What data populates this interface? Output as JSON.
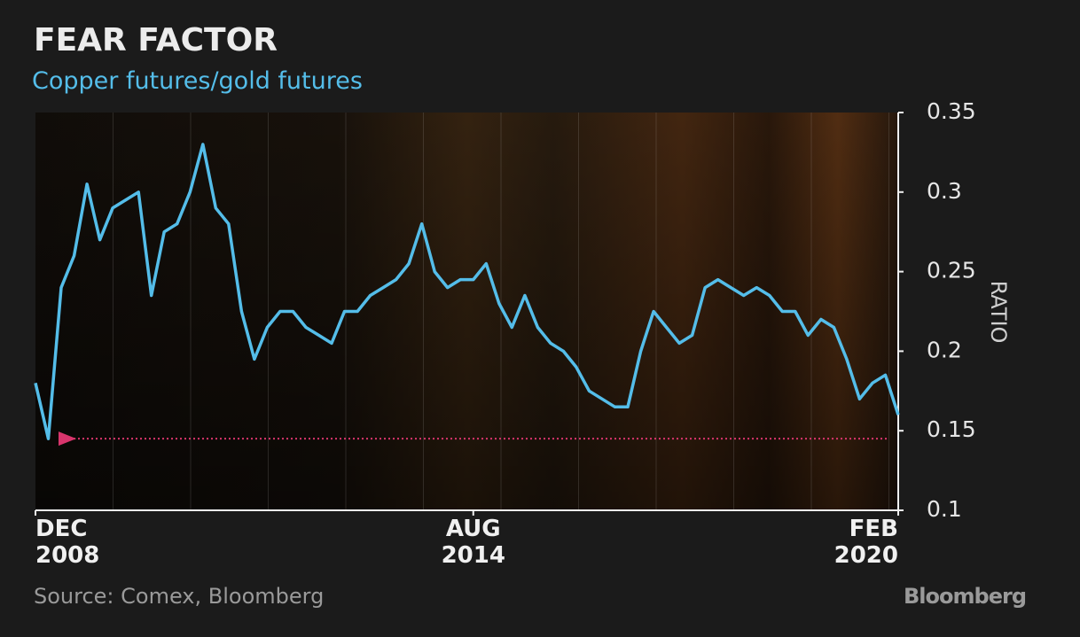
{
  "chart_data": {
    "type": "line",
    "title": "FEAR FACTOR",
    "subtitle": "Copper futures/gold futures",
    "y_label": "RATIO",
    "source": "Source: Comex, Bloomberg",
    "brand": "Bloomberg",
    "color": "#54bde9",
    "x": [
      "2008-12",
      "2009-02",
      "2009-04",
      "2009-06",
      "2009-08",
      "2009-10",
      "2009-12",
      "2010-02",
      "2010-04",
      "2010-06",
      "2010-08",
      "2010-10",
      "2010-12",
      "2011-02",
      "2011-04",
      "2011-06",
      "2011-08",
      "2011-10",
      "2011-12",
      "2012-02",
      "2012-04",
      "2012-06",
      "2012-08",
      "2012-10",
      "2012-12",
      "2013-02",
      "2013-04",
      "2013-06",
      "2013-08",
      "2013-10",
      "2013-12",
      "2014-02",
      "2014-04",
      "2014-06",
      "2014-08",
      "2014-10",
      "2014-12",
      "2015-02",
      "2015-04",
      "2015-06",
      "2015-08",
      "2015-10",
      "2015-12",
      "2016-02",
      "2016-04",
      "2016-06",
      "2016-08",
      "2016-10",
      "2016-12",
      "2017-02",
      "2017-04",
      "2017-06",
      "2017-08",
      "2017-10",
      "2017-12",
      "2018-02",
      "2018-04",
      "2018-06",
      "2018-08",
      "2018-10",
      "2018-12",
      "2019-02",
      "2019-04",
      "2019-06",
      "2019-08",
      "2019-10",
      "2019-12",
      "2020-02"
    ],
    "values": [
      0.18,
      0.145,
      0.24,
      0.26,
      0.305,
      0.27,
      0.29,
      0.295,
      0.3,
      0.235,
      0.275,
      0.28,
      0.3,
      0.33,
      0.29,
      0.28,
      0.225,
      0.195,
      0.215,
      0.225,
      0.225,
      0.215,
      0.21,
      0.205,
      0.225,
      0.225,
      0.235,
      0.24,
      0.245,
      0.255,
      0.28,
      0.25,
      0.24,
      0.245,
      0.245,
      0.255,
      0.23,
      0.215,
      0.235,
      0.215,
      0.205,
      0.2,
      0.19,
      0.175,
      0.17,
      0.165,
      0.165,
      0.2,
      0.225,
      0.215,
      0.205,
      0.21,
      0.24,
      0.245,
      0.24,
      0.235,
      0.24,
      0.235,
      0.225,
      0.225,
      0.21,
      0.22,
      0.215,
      0.195,
      0.17,
      0.18,
      0.185,
      0.16
    ],
    "xticks": [
      {
        "value": "2008-12",
        "label": "DEC 2008"
      },
      {
        "value": "2014-08",
        "label": "AUG 2014"
      },
      {
        "value": "2020-02",
        "label": "FEB 2020"
      }
    ],
    "ylim": [
      0.1,
      0.35
    ],
    "yticks": [
      0.1,
      0.15,
      0.2,
      0.25,
      0.3,
      0.35
    ],
    "reference_line": {
      "value": 0.145,
      "color": "#d8356c"
    }
  }
}
